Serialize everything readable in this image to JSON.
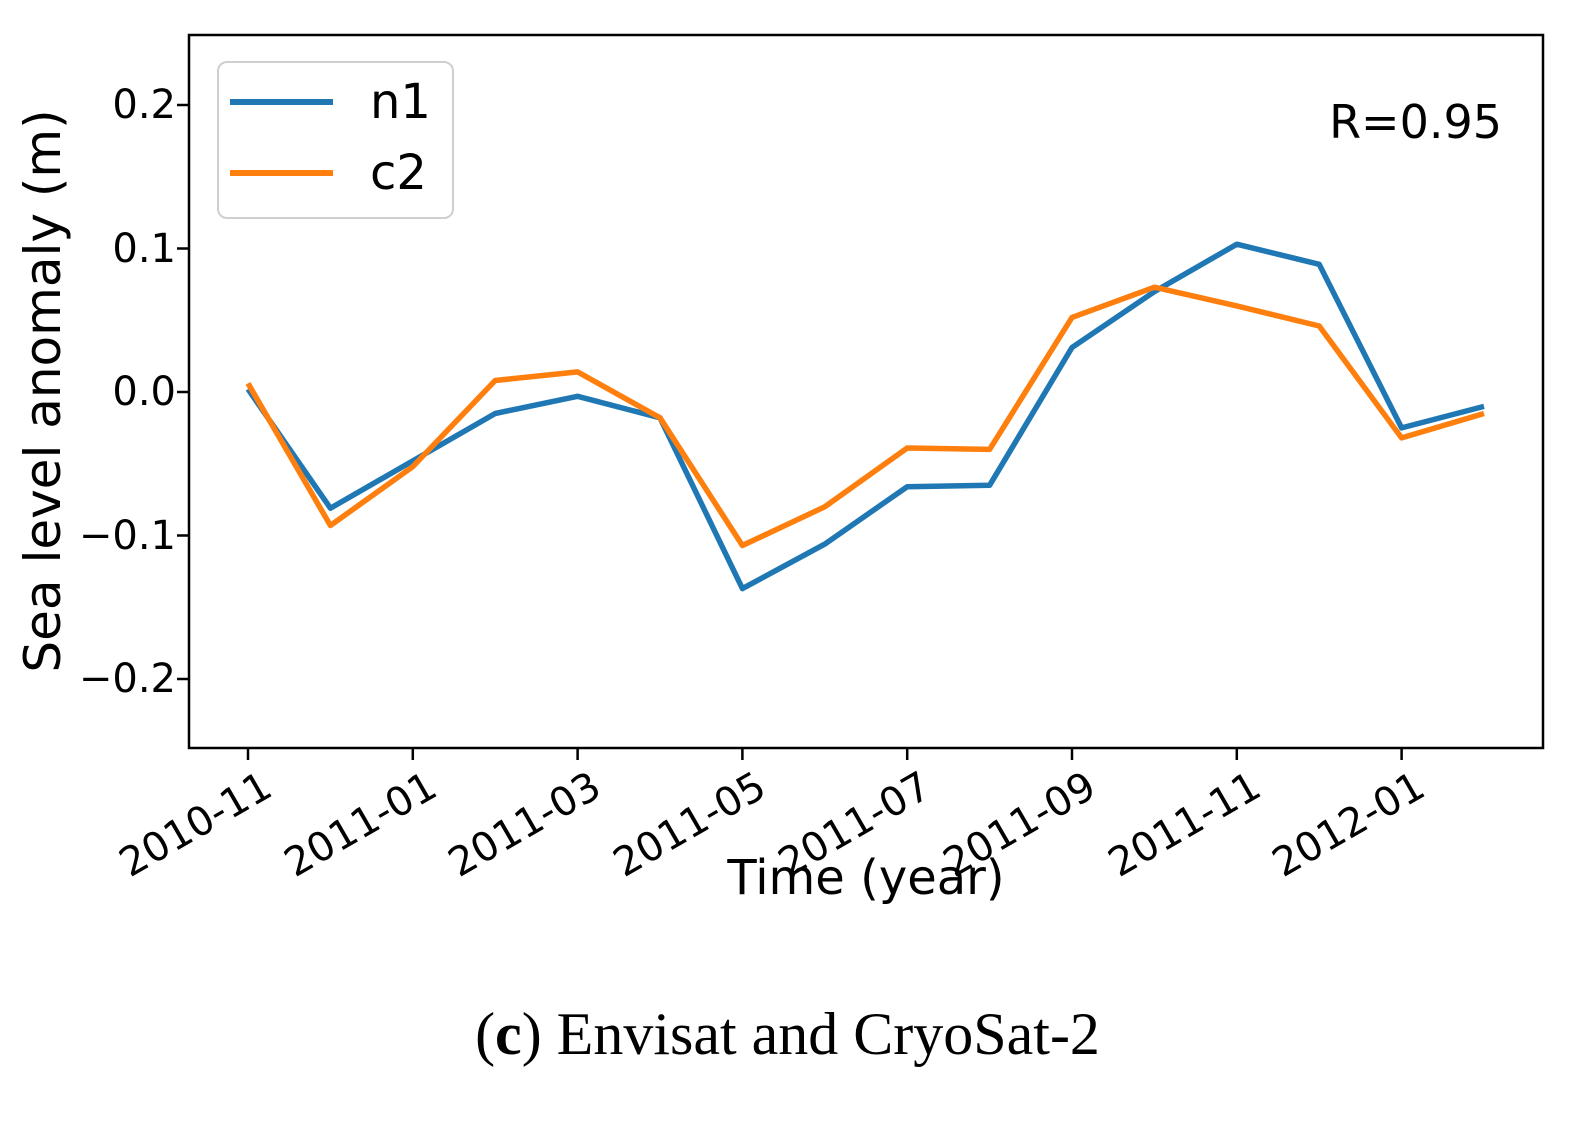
{
  "figure": {
    "caption": {
      "open_paren": "(",
      "letter": "c",
      "close_paren": ")",
      "text": " Envisat and CryoSat-2"
    }
  },
  "chart_data": {
    "type": "line",
    "title": "",
    "xlabel": "Time (year)",
    "ylabel": "Sea level anomaly (m)",
    "ylim": [
      -0.25,
      0.25
    ],
    "grid": false,
    "legend": {
      "position": "upper left",
      "entries": [
        "n1",
        "c2"
      ]
    },
    "annotations": [
      {
        "text": "R=0.95",
        "position": "upper right"
      }
    ],
    "yticks": {
      "values": [
        0.2,
        0.1,
        0.0,
        -0.1,
        -0.2
      ],
      "labels": [
        "0.2",
        "0.1",
        "0.0",
        "−0.1",
        "−0.2"
      ]
    },
    "xticks": {
      "month_indices": [
        0,
        2,
        4,
        6,
        8,
        10,
        12,
        14
      ],
      "labels": [
        "2010-11",
        "2011-01",
        "2011-03",
        "2011-05",
        "2011-07",
        "2011-09",
        "2011-11",
        "2012-01"
      ]
    },
    "categories": [
      "2010-11",
      "2010-12",
      "2011-01",
      "2011-02",
      "2011-03",
      "2011-04",
      "2011-05",
      "2011-06",
      "2011-07",
      "2011-08",
      "2011-09",
      "2011-10",
      "2011-11",
      "2011-12",
      "2012-01",
      "2012-02"
    ],
    "series": [
      {
        "name": "n1",
        "color": "#1f77b4",
        "values": [
          0.002,
          -0.081,
          -0.048,
          -0.015,
          -0.003,
          -0.018,
          -0.137,
          -0.106,
          -0.066,
          -0.065,
          0.031,
          0.07,
          0.103,
          0.089,
          -0.025,
          -0.01
        ]
      },
      {
        "name": "c2",
        "color": "#ff7f0e",
        "values": [
          0.006,
          -0.093,
          -0.052,
          0.008,
          0.014,
          -0.018,
          -0.107,
          -0.08,
          -0.039,
          -0.04,
          0.052,
          0.073,
          0.06,
          0.046,
          -0.032,
          -0.015
        ]
      }
    ]
  }
}
